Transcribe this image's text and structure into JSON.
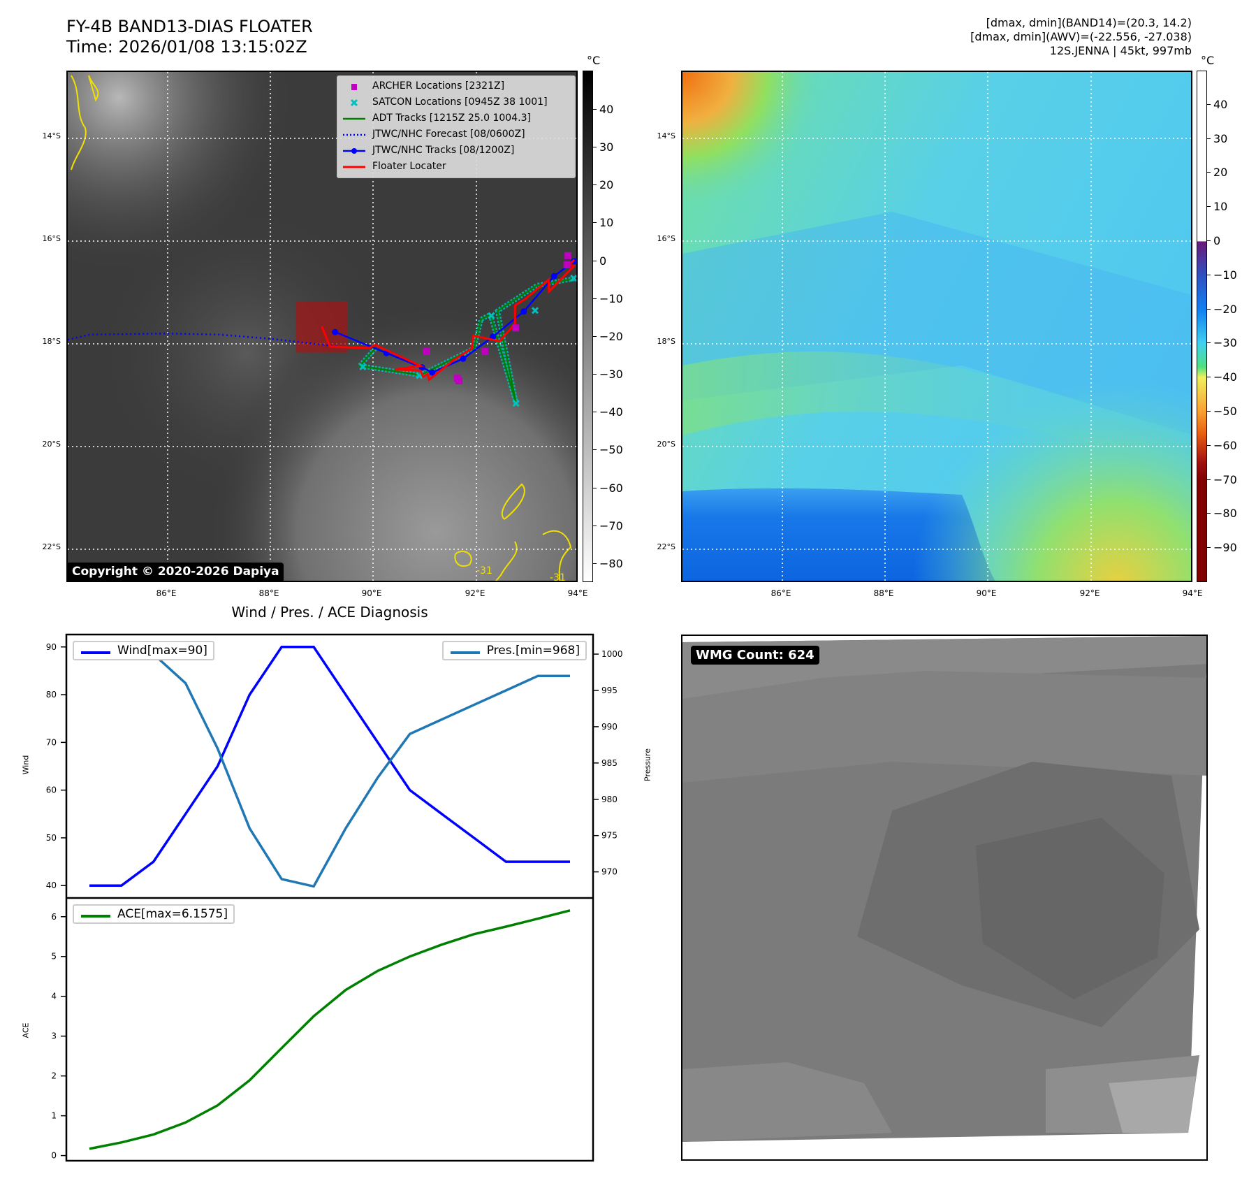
{
  "header": {
    "title": "FY-4B BAND13-DIAS FLOATER",
    "time": "Time: 2026/01/08 13:15:02Z",
    "info_lines": [
      "[dmax, dmin](BAND14)=(20.3, 14.2)",
      "[dmax, dmin](AWV)=(-22.556, -27.038)",
      "12S.JENNA | 45kt, 997mb"
    ]
  },
  "maps": {
    "lon_labels": [
      "86°E",
      "88°E",
      "90°E",
      "92°E",
      "94°E"
    ],
    "lat_labels": [
      "14°S",
      "16°S",
      "18°S",
      "20°S",
      "22°S"
    ],
    "unit": "°C",
    "copyright": "Copyright © 2020-2026 Dapiya",
    "contour_labels": [
      "-31",
      "-31"
    ],
    "colorbar_left_ticks": [
      "40",
      "30",
      "20",
      "10",
      "0",
      "−10",
      "−20",
      "−30",
      "−40",
      "−50",
      "−60",
      "−70",
      "−80"
    ],
    "colorbar_left_range": [
      -84.8,
      50.3
    ],
    "colorbar_right_ticks": [
      "40",
      "30",
      "20",
      "10",
      "0",
      "−10",
      "−20",
      "−30",
      "−40",
      "−50",
      "−60",
      "−70",
      "−80",
      "−90"
    ],
    "colorbar_right_range": [
      -100,
      50
    ],
    "legend": [
      {
        "label": "ARCHER Locations [2321Z]",
        "color": "#c000c0",
        "icon": "square-marker"
      },
      {
        "label": "SATCON Locations [0945Z 38 1001]",
        "color": "#00c0c0",
        "icon": "x-marker"
      },
      {
        "label": "ADT Tracks [1215Z 25.0 1004.3]",
        "color": "#008000",
        "icon": "line"
      },
      {
        "label": "JTWC/NHC Forecast [08/0600Z]",
        "color": "#0000ff",
        "icon": "dotted-line"
      },
      {
        "label": "JTWC/NHC Tracks [08/1200Z]",
        "color": "#0000ff",
        "icon": "line-dot"
      },
      {
        "label": "Floater Locater",
        "color": "#ff0000",
        "icon": "line"
      }
    ],
    "tracks": {
      "jtwc_track": [
        [
          89.26,
          17.77
        ],
        [
          90.26,
          18.18
        ],
        [
          90.95,
          18.46
        ],
        [
          91.15,
          18.56
        ],
        [
          91.75,
          18.29
        ],
        [
          92.33,
          17.86
        ],
        [
          92.93,
          17.37
        ],
        [
          93.52,
          16.68
        ],
        [
          93.91,
          16.39
        ]
      ],
      "jtwc_forecast": [
        [
          84.06,
          17.92
        ],
        [
          84.5,
          17.82
        ],
        [
          86.0,
          17.8
        ],
        [
          87.0,
          17.82
        ],
        [
          88.0,
          17.9
        ],
        [
          89.3,
          18.05
        ]
      ],
      "floater": [
        [
          89.0,
          17.66
        ],
        [
          89.16,
          18.05
        ],
        [
          89.56,
          18.07
        ],
        [
          89.93,
          18.08
        ],
        [
          90.04,
          18.02
        ],
        [
          90.92,
          18.43
        ],
        [
          90.42,
          18.5
        ],
        [
          90.92,
          18.52
        ],
        [
          90.97,
          18.64
        ],
        [
          91.06,
          18.59
        ],
        [
          91.09,
          18.7
        ],
        [
          91.56,
          18.32
        ],
        [
          91.92,
          18.09
        ],
        [
          91.95,
          17.84
        ],
        [
          92.46,
          17.95
        ],
        [
          92.76,
          17.61
        ],
        [
          92.76,
          17.25
        ],
        [
          92.94,
          17.14
        ],
        [
          93.41,
          16.75
        ],
        [
          93.42,
          16.98
        ],
        [
          93.91,
          16.48
        ],
        [
          93.82,
          16.46
        ],
        [
          93.91,
          16.36
        ]
      ],
      "adt": [
        [
          90.04,
          18.09
        ],
        [
          89.74,
          18.43
        ],
        [
          90.92,
          18.61
        ],
        [
          91.96,
          18.09
        ],
        [
          92.1,
          17.52
        ],
        [
          92.28,
          17.43
        ],
        [
          92.78,
          19.16
        ],
        [
          92.42,
          17.36
        ],
        [
          93.19,
          16.86
        ],
        [
          93.91,
          16.73
        ]
      ],
      "archer": [
        [
          91.04,
          18.15
        ],
        [
          92.17,
          18.15
        ],
        [
          92.77,
          17.69
        ],
        [
          91.64,
          18.67
        ],
        [
          91.67,
          18.72
        ],
        [
          93.79,
          16.28
        ],
        [
          93.77,
          16.46
        ]
      ],
      "satcon": [
        [
          92.78,
          19.16
        ],
        [
          93.15,
          17.35
        ],
        [
          92.3,
          17.45
        ],
        [
          89.8,
          18.45
        ],
        [
          90.9,
          18.62
        ],
        [
          93.9,
          16.72
        ]
      ],
      "floater_box": {
        "lon": [
          88.5,
          89.5
        ],
        "lat": [
          17.17,
          18.17
        ]
      }
    }
  },
  "chart_data": {
    "type": "line",
    "title": "Wind / Pres. / ACE Diagnosis",
    "x": [
      0,
      1,
      2,
      3,
      4,
      5,
      6,
      7,
      8,
      9,
      10,
      11,
      12,
      13,
      14,
      15
    ],
    "xlim": [
      -0.72,
      15.72
    ],
    "panels": [
      {
        "ylabel": "Wind",
        "ylim": [
          37.4,
          92.6
        ],
        "yticks": [
          40,
          50,
          60,
          70,
          80,
          90
        ],
        "series": [
          {
            "name": "Wind[max=90]",
            "color": "#0000ff",
            "values": [
              40,
              40,
              45,
              55,
              65,
              80,
              90,
              90,
              80,
              70,
              60,
              55,
              50,
              45,
              45,
              45
            ]
          }
        ],
        "legend": "top-left",
        "twin": {
          "ylabel": "Pressure",
          "ylim": [
            966.4,
            1002.7
          ],
          "yticks": [
            970,
            975,
            980,
            985,
            990,
            995,
            1000
          ],
          "series": [
            {
              "name": "Pres.[min=968]",
              "color": "#1f77b4",
              "values": [
                1001,
                1001,
                1000,
                996,
                987,
                976,
                969,
                968,
                976,
                983,
                989,
                991,
                993,
                995,
                997,
                997
              ]
            }
          ],
          "legend": "top-right"
        }
      },
      {
        "ylabel": "ACE",
        "ylim": [
          -0.13,
          6.47
        ],
        "yticks": [
          0,
          1,
          2,
          3,
          4,
          5,
          6
        ],
        "series": [
          {
            "name": "ACE[max=6.1575]",
            "color": "#008000",
            "values": [
              0.17,
              0.33,
              0.53,
              0.83,
              1.26,
              1.89,
              2.7,
              3.5,
              4.16,
              4.64,
              5.0,
              5.3,
              5.56,
              5.75,
              5.95,
              6.1575
            ]
          }
        ],
        "legend": "top-left"
      }
    ]
  },
  "wmg": {
    "label": "WMG Count: 624"
  }
}
